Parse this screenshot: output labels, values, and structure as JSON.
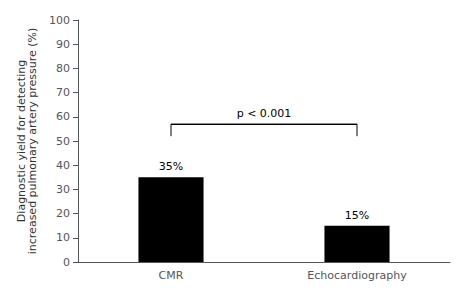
{
  "chart_data": {
    "type": "bar",
    "categories": [
      "CMR",
      "Echocardiography"
    ],
    "values": [
      35,
      15
    ],
    "value_labels": [
      "35%",
      "15%"
    ],
    "data_labels": true,
    "color": "#000000",
    "ylabel": "Diagnostic yield for detecting\nincreased pulmonary artery pressure (%)",
    "ylim": [
      0,
      100
    ],
    "yticks": [
      0,
      10,
      20,
      30,
      40,
      50,
      60,
      70,
      80,
      90,
      100
    ],
    "grid": false,
    "significance": {
      "text": "p < 0.001",
      "from": "CMR",
      "to": "Echocardiography",
      "y": 57,
      "bar_y": 52
    }
  }
}
